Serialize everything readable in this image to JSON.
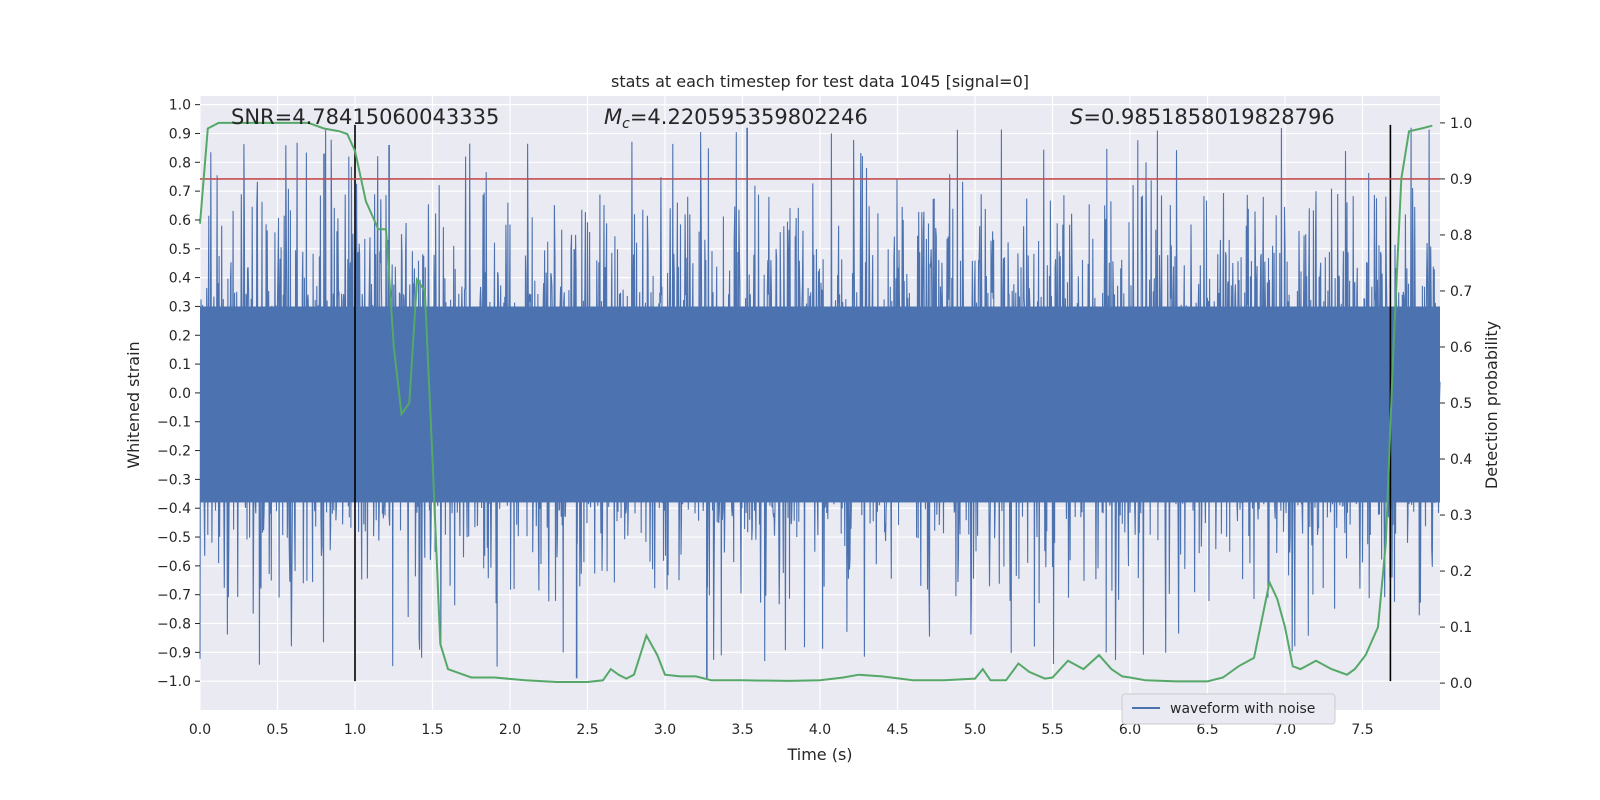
{
  "chart_data": {
    "type": "line",
    "title": "stats at each timestep for test data 1045 [signal=0]",
    "xlabel": "Time (s)",
    "ylabel": "Whitened strain",
    "y2label": "Detection probability",
    "xlim": [
      0.0,
      8.0
    ],
    "ylim": [
      -1.1,
      1.03
    ],
    "y2lim": [
      -0.048,
      1.048
    ],
    "x_ticks": [
      "0.0",
      "0.5",
      "1.0",
      "1.5",
      "2.0",
      "2.5",
      "3.0",
      "3.5",
      "4.0",
      "4.5",
      "5.0",
      "5.5",
      "6.0",
      "6.5",
      "7.0",
      "7.5"
    ],
    "y_ticks": [
      "1.0",
      "0.9",
      "0.8",
      "0.7",
      "0.6",
      "0.5",
      "0.4",
      "0.3",
      "0.2",
      "0.1",
      "0.0",
      "−0.1",
      "−0.2",
      "−0.3",
      "−0.4",
      "−0.5",
      "−0.6",
      "−0.7",
      "−0.8",
      "−0.9",
      "−1.0"
    ],
    "y_tick_values": [
      1.0,
      0.9,
      0.8,
      0.7,
      0.6,
      0.5,
      0.4,
      0.3,
      0.2,
      0.1,
      0.0,
      -0.1,
      -0.2,
      -0.3,
      -0.4,
      -0.5,
      -0.6,
      -0.7,
      -0.8,
      -0.9,
      -1.0
    ],
    "y2_ticks": [
      "1.0",
      "0.9",
      "0.8",
      "0.7",
      "0.6",
      "0.5",
      "0.4",
      "0.3",
      "0.2",
      "0.1",
      "0.0"
    ],
    "y2_tick_values": [
      1.0,
      0.9,
      0.8,
      0.7,
      0.6,
      0.5,
      0.4,
      0.3,
      0.2,
      0.1,
      0.0
    ],
    "annotations": {
      "snr": "SNR=4.78415060043335",
      "mc_symbol": "M",
      "mc_sub": "c",
      "mc_value": "=4.220595359802246",
      "s_symbol": "S",
      "s_value": "=0.9851858019828796"
    },
    "legend": {
      "entries": [
        "waveform with noise"
      ],
      "location": "lower-right"
    },
    "threshold": {
      "axis": "y2",
      "value": 0.9,
      "color": "#c44e52"
    },
    "vertical_markers": {
      "x": [
        1.0,
        7.68
      ],
      "y_range": [
        -1.0,
        0.93
      ],
      "color": "#000000"
    },
    "waveform": {
      "name": "waveform with noise",
      "color": "#4c72b0",
      "duration": 8.0,
      "body_range": [
        -0.42,
        0.35
      ],
      "peak_high": 0.92,
      "peak_low": -0.99
    },
    "probability": {
      "name": "detection probability",
      "color": "#55a868",
      "x": [
        0.0,
        0.05,
        0.12,
        0.3,
        0.5,
        0.7,
        0.8,
        0.9,
        0.95,
        1.0,
        1.07,
        1.15,
        1.2,
        1.25,
        1.3,
        1.35,
        1.4,
        1.45,
        1.5,
        1.55,
        1.6,
        1.65,
        1.75,
        1.9,
        2.1,
        2.3,
        2.5,
        2.6,
        2.65,
        2.7,
        2.75,
        2.8,
        2.88,
        2.95,
        3.0,
        3.1,
        3.2,
        3.3,
        3.5,
        3.8,
        4.0,
        4.15,
        4.25,
        4.4,
        4.6,
        4.8,
        5.0,
        5.05,
        5.1,
        5.2,
        5.28,
        5.35,
        5.45,
        5.5,
        5.6,
        5.7,
        5.8,
        5.88,
        5.95,
        6.0,
        6.1,
        6.3,
        6.5,
        6.6,
        6.7,
        6.8,
        6.9,
        6.95,
        7.0,
        7.05,
        7.1,
        7.2,
        7.3,
        7.4,
        7.45,
        7.52,
        7.6,
        7.65,
        7.7,
        7.75,
        7.8,
        7.88,
        7.95
      ],
      "y": [
        0.82,
        0.99,
        1.0,
        1.0,
        1.0,
        1.0,
        0.99,
        0.985,
        0.98,
        0.95,
        0.86,
        0.81,
        0.81,
        0.6,
        0.48,
        0.5,
        0.72,
        0.7,
        0.4,
        0.07,
        0.025,
        0.02,
        0.01,
        0.01,
        0.005,
        0.002,
        0.002,
        0.005,
        0.025,
        0.015,
        0.008,
        0.015,
        0.085,
        0.05,
        0.015,
        0.012,
        0.012,
        0.005,
        0.005,
        0.004,
        0.005,
        0.01,
        0.015,
        0.012,
        0.005,
        0.005,
        0.008,
        0.025,
        0.005,
        0.005,
        0.035,
        0.02,
        0.008,
        0.01,
        0.04,
        0.025,
        0.05,
        0.025,
        0.012,
        0.01,
        0.005,
        0.003,
        0.003,
        0.01,
        0.03,
        0.045,
        0.18,
        0.15,
        0.1,
        0.03,
        0.025,
        0.04,
        0.025,
        0.015,
        0.025,
        0.05,
        0.1,
        0.25,
        0.6,
        0.9,
        0.985,
        0.99,
        0.995
      ]
    }
  }
}
